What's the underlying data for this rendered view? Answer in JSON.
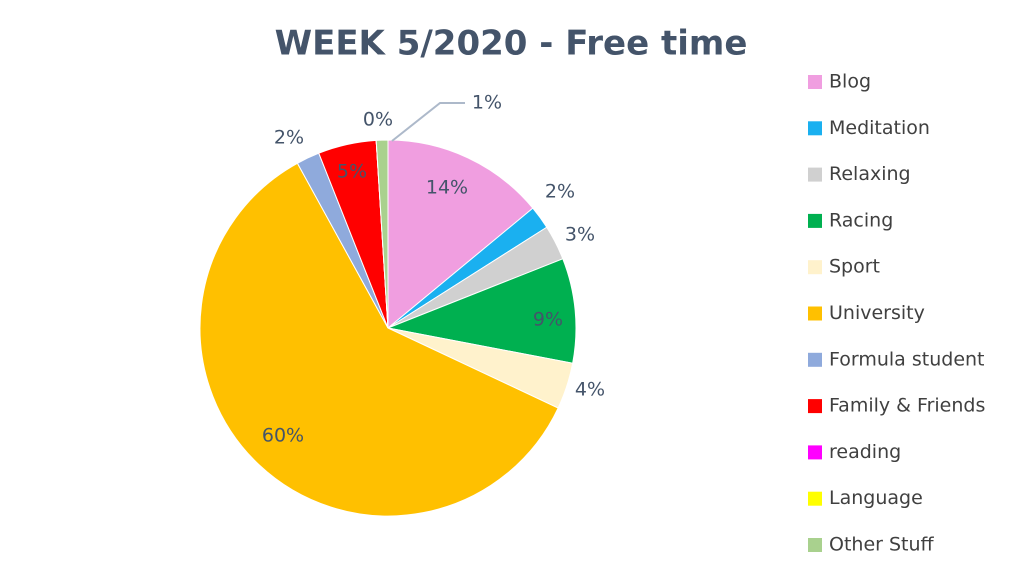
{
  "chart_data": {
    "type": "pie",
    "title": "WEEK 5/2020 - Free time",
    "categories": [
      "Blog",
      "Meditation",
      "Relaxing",
      "Racing",
      "Sport",
      "University",
      "Formula student",
      "Family & Friends",
      "reading",
      "Language",
      "Other Stuff"
    ],
    "values": [
      14,
      2,
      3,
      9,
      4,
      60,
      2,
      5,
      0,
      0,
      1
    ],
    "value_labels": [
      "14%",
      "2%",
      "3%",
      "9%",
      "4%",
      "60%",
      "2%",
      "5%",
      "0%",
      null,
      "1%"
    ],
    "colors": [
      "#f09ee0",
      "#1ab0f0",
      "#d0d0d0",
      "#00b050",
      "#fff2cc",
      "#ffc000",
      "#8faadc",
      "#ff0000",
      "#ff00ff",
      "#ffff00",
      "#a9d18e"
    ],
    "legend": "right"
  }
}
